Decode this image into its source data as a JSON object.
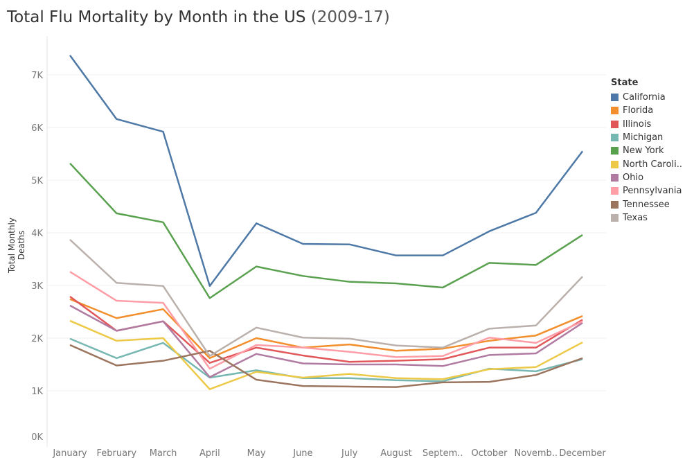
{
  "chart_data": {
    "type": "line",
    "title": "Total Flu Mortality by Month in the US",
    "subtitle": "(2009-17)",
    "xlabel": "",
    "ylabel": "Total Monthly Deaths",
    "ylim": [
      0,
      7700
    ],
    "yticks": [
      "0K",
      "1K",
      "2K",
      "3K",
      "4K",
      "5K",
      "6K",
      "7K"
    ],
    "grid": true,
    "legend_title": "State",
    "legend_position": "right",
    "categories": [
      "January",
      "February",
      "March",
      "April",
      "May",
      "June",
      "July",
      "August",
      "Septem..",
      "October",
      "Novemb..",
      "December"
    ],
    "series": [
      {
        "name": "California",
        "color": "#4e79a7",
        "values": [
          7370,
          6160,
          5920,
          2990,
          4180,
          3790,
          3780,
          3570,
          3570,
          4030,
          4380,
          5550
        ]
      },
      {
        "name": "Florida",
        "color": "#f28e2b",
        "values": [
          2740,
          2380,
          2550,
          1620,
          2000,
          1820,
          1880,
          1760,
          1800,
          1950,
          2050,
          2420
        ]
      },
      {
        "name": "Illinois",
        "color": "#e15759",
        "values": [
          2790,
          2140,
          2320,
          1530,
          1820,
          1670,
          1550,
          1570,
          1600,
          1820,
          1820,
          2350
        ]
      },
      {
        "name": "Michigan",
        "color": "#76b7b2",
        "values": [
          1990,
          1620,
          1910,
          1250,
          1390,
          1240,
          1240,
          1200,
          1180,
          1420,
          1370,
          1600
        ]
      },
      {
        "name": "New York",
        "color": "#59a14f",
        "values": [
          5320,
          4370,
          4200,
          2760,
          3360,
          3180,
          3070,
          3040,
          2960,
          3430,
          3390,
          3960
        ]
      },
      {
        "name": "North Caroli..",
        "color": "#edc948",
        "values": [
          2330,
          1950,
          2000,
          1030,
          1360,
          1250,
          1320,
          1240,
          1220,
          1410,
          1450,
          1920
        ]
      },
      {
        "name": "Ohio",
        "color": "#b07aa1",
        "values": [
          2620,
          2140,
          2320,
          1260,
          1700,
          1520,
          1500,
          1500,
          1470,
          1680,
          1710,
          2290
        ]
      },
      {
        "name": "Pennsylvania",
        "color": "#ff9da7",
        "values": [
          3260,
          2710,
          2670,
          1420,
          1870,
          1820,
          1740,
          1640,
          1660,
          2010,
          1910,
          2320
        ]
      },
      {
        "name": "Tennessee",
        "color": "#9c755f",
        "values": [
          1870,
          1480,
          1570,
          1760,
          1210,
          1090,
          1080,
          1070,
          1160,
          1170,
          1300,
          1620
        ]
      },
      {
        "name": "Texas",
        "color": "#bab0ac",
        "values": [
          3870,
          3050,
          2990,
          1660,
          2200,
          2010,
          1990,
          1860,
          1820,
          2180,
          2240,
          3170
        ]
      }
    ]
  }
}
